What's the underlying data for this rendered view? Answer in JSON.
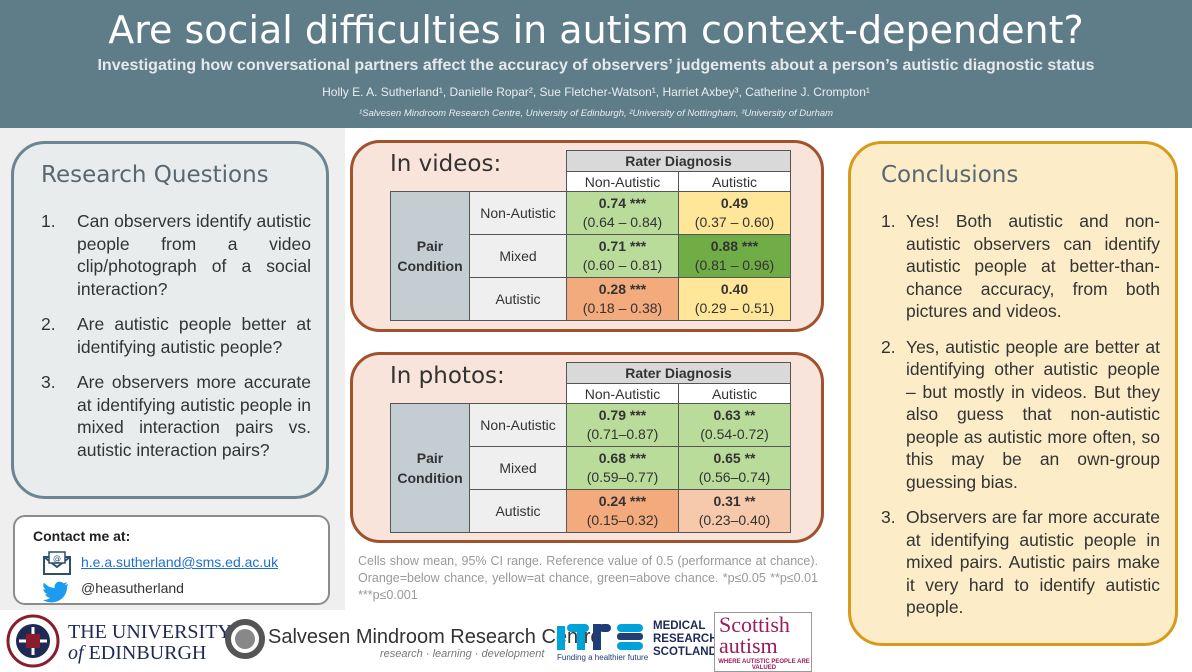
{
  "header": {
    "title": "Are social difficulties in autism context-dependent?",
    "subtitle": "Investigating how conversational partners affect the accuracy of observers’ judgements about a person’s autistic diagnostic status",
    "authors": "Holly E. A. Sutherland¹, Danielle Ropar², Sue Fletcher-Watson¹, Harriet Axbey³, Catherine J. Crompton¹",
    "affiliations": "¹Salvesen Mindroom Research Centre, University of Edinburgh, ²University of Nottingham, ³University of Durham"
  },
  "research_questions": {
    "title": "Research Questions",
    "items": [
      {
        "num": "1.",
        "text": "Can observers identify autistic people from a video clip/photograph of a social interaction?"
      },
      {
        "num": "2.",
        "text": "Are autistic people better at identifying autistic people?"
      },
      {
        "num": "3.",
        "text": "Are observers more accurate at identifying autistic people in mixed interaction pairs vs. autistic interaction pairs?"
      }
    ]
  },
  "contact": {
    "title": "Contact me at:",
    "email": "h.e.a.sutherland@sms.ed.ac.uk",
    "twitter": "@heasutherland",
    "icons": [
      "email-icon",
      "twitter-bird-icon"
    ]
  },
  "tables": {
    "videos": {
      "title": "In videos:",
      "col_header": "Rater Diagnosis",
      "cols": [
        "Non-Autistic",
        "Autistic"
      ],
      "row_header": "Pair Condition",
      "rows": [
        {
          "label": "Non-Autistic",
          "cells": [
            {
              "mean": "0.74",
              "sig": "***",
              "ci": "(0.64 – 0.84)",
              "color": "green"
            },
            {
              "mean": "0.49",
              "sig": "",
              "ci": "(0.37 – 0.60)",
              "color": "yellow"
            }
          ]
        },
        {
          "label": "Mixed",
          "cells": [
            {
              "mean": "0.71",
              "sig": "***",
              "ci": "(0.60 – 0.81)",
              "color": "green"
            },
            {
              "mean": "0.88",
              "sig": "***",
              "ci": "(0.81 – 0.96)",
              "color": "dark-green"
            }
          ]
        },
        {
          "label": "Autistic",
          "cells": [
            {
              "mean": "0.28",
              "sig": "***",
              "ci": "(0.18 – 0.38)",
              "color": "orange"
            },
            {
              "mean": "0.40",
              "sig": "",
              "ci": "(0.29 – 0.51)",
              "color": "yellow"
            }
          ]
        }
      ]
    },
    "photos": {
      "title": "In photos:",
      "col_header": "Rater Diagnosis",
      "cols": [
        "Non-Autistic",
        "Autistic"
      ],
      "row_header": "Pair Condition",
      "rows": [
        {
          "label": "Non-Autistic",
          "cells": [
            {
              "mean": "0.79",
              "sig": "***",
              "ci": "(0.71–0.87)",
              "color": "green"
            },
            {
              "mean": "0.63",
              "sig": "**",
              "ci": "(0.54-0.72)",
              "color": "green"
            }
          ]
        },
        {
          "label": "Mixed",
          "cells": [
            {
              "mean": "0.68",
              "sig": "***",
              "ci": "(0.59–0.77)",
              "color": "green"
            },
            {
              "mean": "0.65",
              "sig": "**",
              "ci": "(0.56–0.74)",
              "color": "green"
            }
          ]
        },
        {
          "label": "Autistic",
          "cells": [
            {
              "mean": "0.24",
              "sig": "***",
              "ci": "(0.15–0.32)",
              "color": "orange"
            },
            {
              "mean": "0.31",
              "sig": "**",
              "ci": "(0.23–0.40)",
              "color": "light-orange"
            }
          ]
        }
      ]
    },
    "note": "Cells show mean, 95% CI range. Reference value of 0.5 (performance at chance). Orange=below chance, yellow=at chance, green=above chance. *p≤0.05 **p≤0.01 ***p≤0.001"
  },
  "conclusions": {
    "title": "Conclusions",
    "items": [
      {
        "num": "1.",
        "text": "Yes! Both autistic and non-autistic observers can identify autistic people at better-than-chance accuracy, from both pictures and videos."
      },
      {
        "num": "2.",
        "text": "Yes, autistic people are better at identifying other autistic people – but mostly in videos. But they also guess that non-autistic people as autistic more often, so this may be an own-group guessing bias."
      },
      {
        "num": "3.",
        "text": "Observers are far more accurate at identifying autistic people in mixed pairs. Autistic pairs make it very hard to identify autistic people."
      }
    ]
  },
  "logos": {
    "uoe_line1": "THE UNIVERSITY",
    "uoe_of": "of",
    "uoe_line2": "EDINBURGH",
    "smrc_name": "Salvesen Mindroom Research Centre",
    "smrc_tag": "research · learning · development",
    "mrs_tag": "Funding a healthier future",
    "mrc_lines": [
      "MEDICAL",
      "RESEARCH",
      "SCOTLAND"
    ],
    "sa_line1": "Scottish",
    "sa_line2": "autism",
    "sa_tag": "WHERE AUTISTIC PEOPLE ARE VALUED"
  }
}
